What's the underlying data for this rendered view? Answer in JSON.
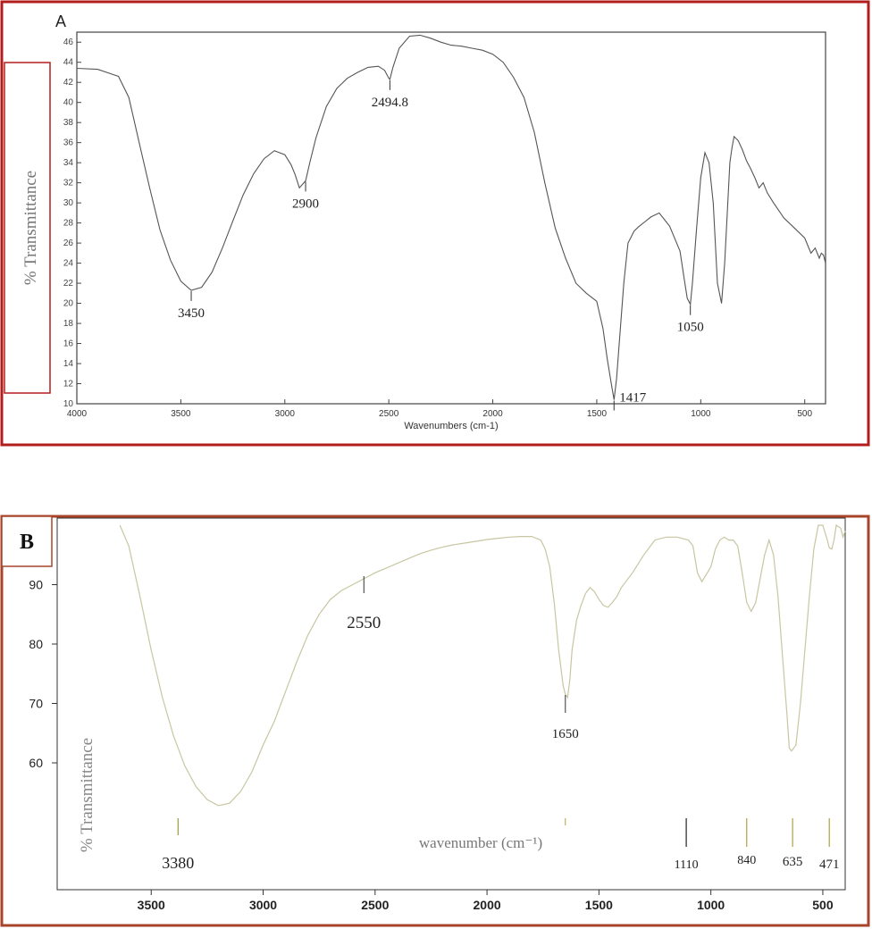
{
  "chart_data": [
    {
      "panel": "A",
      "type": "line",
      "xlabel": "Wavenumbers (cm-1)",
      "ylabel": "% Transmittance",
      "xlim": [
        4000,
        400
      ],
      "ylim": [
        10,
        47
      ],
      "x_ticks": [
        4000,
        3500,
        3000,
        2500,
        2000,
        1500,
        1000,
        500
      ],
      "y_ticks": [
        10,
        12,
        14,
        16,
        18,
        20,
        22,
        24,
        26,
        28,
        30,
        32,
        34,
        36,
        38,
        40,
        42,
        44,
        46
      ],
      "grid": false,
      "frame_color": "#b31d1d",
      "series": [
        {
          "x": [
            4000,
            3900,
            3800,
            3750,
            3700,
            3650,
            3600,
            3550,
            3500,
            3450,
            3400,
            3350,
            3300,
            3250,
            3200,
            3150,
            3100,
            3050,
            3000,
            2970,
            2950,
            2930,
            2900,
            2880,
            2850,
            2800,
            2750,
            2700,
            2650,
            2600,
            2550,
            2520,
            2500,
            2494.8,
            2480,
            2450,
            2400,
            2350,
            2300,
            2250,
            2200,
            2150,
            2100,
            2050,
            2000,
            1950,
            1900,
            1850,
            1800,
            1750,
            1700,
            1650,
            1600,
            1550,
            1500,
            1470,
            1450,
            1430,
            1417,
            1405,
            1390,
            1370,
            1350,
            1320,
            1300,
            1270,
            1240,
            1200,
            1150,
            1100,
            1080,
            1065,
            1050,
            1040,
            1020,
            1000,
            980,
            960,
            940,
            920,
            900,
            885,
            870,
            860,
            850,
            840,
            820,
            800,
            780,
            760,
            740,
            720,
            700,
            680,
            650,
            600,
            550,
            500,
            470,
            450,
            430,
            420,
            410,
            400
          ],
          "y": [
            43.4,
            43.3,
            42.6,
            40.5,
            36.0,
            31.5,
            27.3,
            24.3,
            22.2,
            21.3,
            21.6,
            23.1,
            25.5,
            28.2,
            30.8,
            32.9,
            34.4,
            35.2,
            34.8,
            33.8,
            32.8,
            31.5,
            32.2,
            34.0,
            36.5,
            39.6,
            41.4,
            42.4,
            43.0,
            43.5,
            43.6,
            43.2,
            42.4,
            42.3,
            43.5,
            45.4,
            46.6,
            46.7,
            46.4,
            46.0,
            45.7,
            45.6,
            45.4,
            45.2,
            44.8,
            44.0,
            42.5,
            40.5,
            37.0,
            32.0,
            27.5,
            24.5,
            22.0,
            21.0,
            20.2,
            17.5,
            14.5,
            12.0,
            10.4,
            12.5,
            16.5,
            22.0,
            26.0,
            27.2,
            27.6,
            28.1,
            28.6,
            29.0,
            27.7,
            25.2,
            22.5,
            20.5,
            19.9,
            22.0,
            27.5,
            32.5,
            35.0,
            34.0,
            30.0,
            22.0,
            20.0,
            24.0,
            30.0,
            34.0,
            35.5,
            36.6,
            36.2,
            35.3,
            34.2,
            33.4,
            32.5,
            31.5,
            32.0,
            31.0,
            30.0,
            28.5,
            27.5,
            26.5,
            25.0,
            25.5,
            24.5,
            25.0,
            24.8,
            24.0
          ]
        }
      ],
      "annotations": [
        {
          "x": 3450,
          "label": "3450"
        },
        {
          "x": 2900,
          "label": "2900"
        },
        {
          "x": 2494.8,
          "label": "2494.8"
        },
        {
          "x": 1417,
          "label": "1417"
        },
        {
          "x": 1050,
          "label": "1050"
        }
      ]
    },
    {
      "panel": "B",
      "type": "line",
      "xlabel": "wavenumber (cm⁻¹)",
      "ylabel": "% Transmittance",
      "xlim": [
        3920,
        400
      ],
      "ylim": [
        45,
        101
      ],
      "x_ticks": [
        3500,
        3000,
        2500,
        2000,
        1500,
        1000,
        500
      ],
      "y_ticks": [
        60,
        70,
        80,
        90
      ],
      "grid": false,
      "frame_color": "#a8442a",
      "line_color": "#c8c6a2",
      "series": [
        {
          "x": [
            3640,
            3600,
            3550,
            3500,
            3450,
            3400,
            3350,
            3300,
            3250,
            3200,
            3150,
            3100,
            3050,
            3000,
            2950,
            2900,
            2850,
            2800,
            2750,
            2700,
            2650,
            2600,
            2550,
            2500,
            2450,
            2400,
            2350,
            2300,
            2250,
            2200,
            2150,
            2100,
            2050,
            2000,
            1950,
            1900,
            1850,
            1800,
            1760,
            1740,
            1720,
            1700,
            1680,
            1660,
            1650,
            1640,
            1630,
            1620,
            1600,
            1580,
            1560,
            1540,
            1520,
            1500,
            1480,
            1460,
            1440,
            1420,
            1400,
            1350,
            1300,
            1250,
            1200,
            1150,
            1100,
            1080,
            1060,
            1040,
            1000,
            980,
            960,
            940,
            920,
            900,
            880,
            860,
            840,
            820,
            800,
            780,
            760,
            740,
            720,
            700,
            680,
            660,
            650,
            640,
            620,
            600,
            580,
            560,
            540,
            520,
            500,
            480,
            471,
            460,
            450,
            440,
            420,
            410,
            400
          ],
          "y": [
            100,
            96.5,
            88,
            79,
            71,
            64.5,
            59.5,
            56,
            53.8,
            52.8,
            53.2,
            55.2,
            58.5,
            63,
            67,
            72,
            77,
            81.5,
            85,
            87.5,
            89,
            90,
            91,
            92,
            92.8,
            93.6,
            94.4,
            95.2,
            95.8,
            96.3,
            96.7,
            97,
            97.3,
            97.6,
            97.8,
            98,
            98.1,
            98.1,
            97.5,
            96,
            93,
            87,
            79,
            73,
            71.5,
            71,
            74,
            79,
            84,
            86.5,
            88.5,
            89.5,
            88.8,
            87.5,
            86.5,
            86.2,
            87,
            88,
            89.5,
            92,
            95,
            97.5,
            98,
            98,
            97.5,
            96.5,
            92,
            90.5,
            93,
            96,
            97.5,
            98,
            97.5,
            97.5,
            96.5,
            92,
            87,
            85.5,
            87,
            91,
            95,
            97.5,
            95,
            88,
            78,
            68,
            62.5,
            62,
            63,
            70,
            79,
            88,
            96,
            100,
            100,
            97.5,
            96.2,
            96,
            97.5,
            100,
            99.5,
            98,
            99
          ]
        }
      ],
      "annotations": [
        {
          "x": 2550,
          "label": "2550"
        },
        {
          "x": 1650,
          "label": "1650"
        },
        {
          "x": 3380,
          "label": "3380"
        },
        {
          "x": 1110,
          "label": "1110"
        },
        {
          "x": 840,
          "label": "840"
        },
        {
          "x": 635,
          "label": "635"
        },
        {
          "x": 471,
          "label": "471"
        }
      ]
    }
  ]
}
